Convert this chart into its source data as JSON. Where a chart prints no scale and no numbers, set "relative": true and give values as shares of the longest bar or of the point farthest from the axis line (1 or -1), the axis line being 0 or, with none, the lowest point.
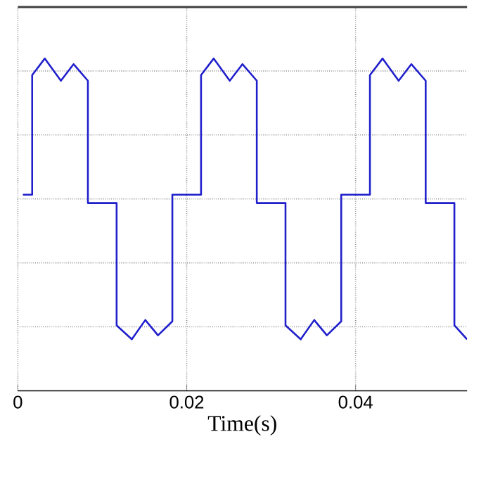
{
  "chart_data": {
    "type": "line",
    "xlabel": "Time(s)",
    "relative": true,
    "grid": true,
    "xlim": [
      0,
      0.0532
    ],
    "xticks": [
      0,
      0.02,
      0.04
    ],
    "series": [
      {
        "color": "#1f1fcc",
        "x": [
          0.0006,
          0.0017,
          0.0017,
          0.0032,
          0.0051,
          0.0066,
          0.0083,
          0.0083,
          0.0117,
          0.0117,
          0.0135,
          0.0151,
          0.0166,
          0.0183,
          0.0183,
          0.0217,
          0.0217,
          0.0232,
          0.0251,
          0.0266,
          0.0283,
          0.0283,
          0.0317,
          0.0317,
          0.0335,
          0.0351,
          0.0366,
          0.0383,
          0.0383,
          0.0417,
          0.0417,
          0.0432,
          0.0451,
          0.0466,
          0.0483,
          0.0483,
          0.0517,
          0.0517,
          0.0532
        ],
        "values": [
          0.59,
          0.59,
          0.95,
          1.0,
          0.933,
          0.983,
          0.933,
          0.565,
          0.565,
          0.197,
          0.155,
          0.213,
          0.167,
          0.209,
          0.59,
          0.59,
          0.95,
          1.0,
          0.933,
          0.983,
          0.933,
          0.565,
          0.565,
          0.197,
          0.155,
          0.213,
          0.167,
          0.209,
          0.59,
          0.59,
          0.95,
          1.0,
          0.933,
          0.983,
          0.933,
          0.565,
          0.565,
          0.197,
          0.155
        ]
      }
    ]
  }
}
